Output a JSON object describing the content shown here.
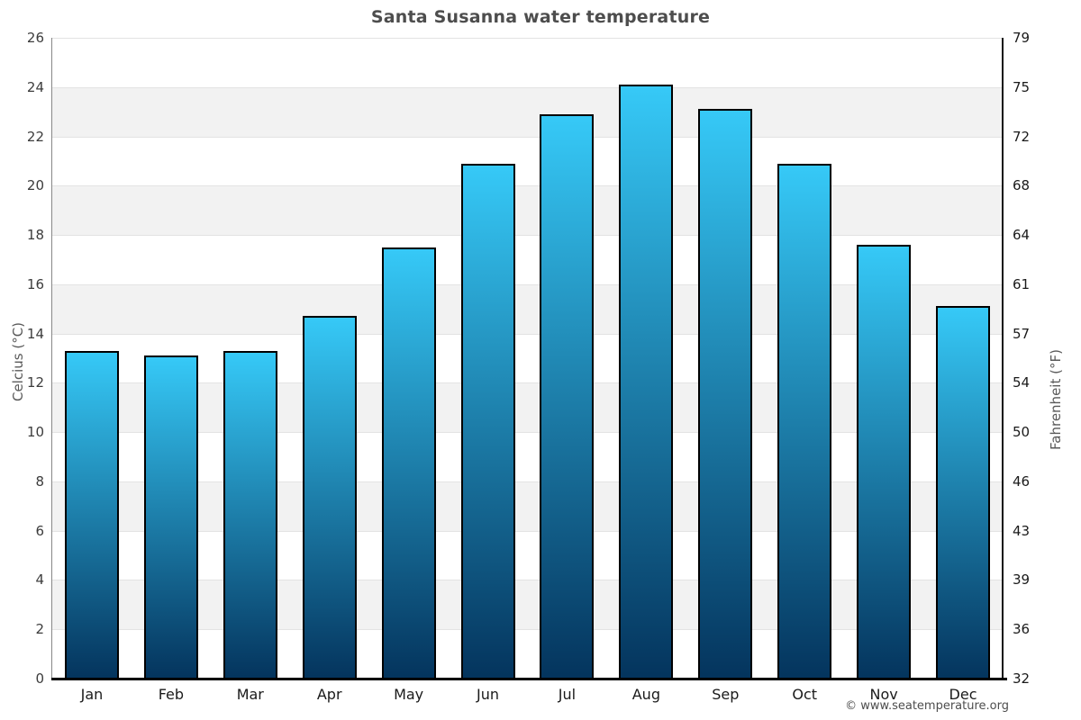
{
  "page": {
    "title": "Santa Susanna water temperature",
    "watermark": "© www.seatemperature.org"
  },
  "chart_data": {
    "type": "bar",
    "title": "Santa Susanna water temperature",
    "categories": [
      "Jan",
      "Feb",
      "Mar",
      "Apr",
      "May",
      "Jun",
      "Jul",
      "Aug",
      "Sep",
      "Oct",
      "Nov",
      "Dec"
    ],
    "values": [
      13.3,
      13.1,
      13.3,
      14.7,
      17.5,
      20.9,
      22.9,
      24.1,
      23.1,
      20.9,
      17.6,
      15.1
    ],
    "unit": "°C",
    "ylabel_left": "Celcius (°C)",
    "ylabel_right": "Fahrenheit (°F)",
    "ylim_celsius": [
      0,
      26
    ],
    "celsius_ticks": [
      0,
      2,
      4,
      6,
      8,
      10,
      12,
      14,
      16,
      18,
      20,
      22,
      24,
      26
    ],
    "fahrenheit_tick_labels": [
      "32",
      "36",
      "39",
      "43",
      "46",
      "50",
      "54",
      "57",
      "61",
      "64",
      "68",
      "72",
      "75",
      "79"
    ],
    "grid": "horizontal alternating bands every 2°C",
    "legend": "none",
    "colors": {
      "bar_gradient_top": "#36C9F7",
      "bar_gradient_bottom": "#04345D",
      "bar_border": "#000000",
      "band_gray": "#f2f2f2",
      "band_white": "#ffffff",
      "gridline": "#e3e3e3",
      "axis_left": "#888888",
      "axis_right": "#111111",
      "axis_bottom": "#000000",
      "title_color": "#4d4d4d"
    }
  }
}
